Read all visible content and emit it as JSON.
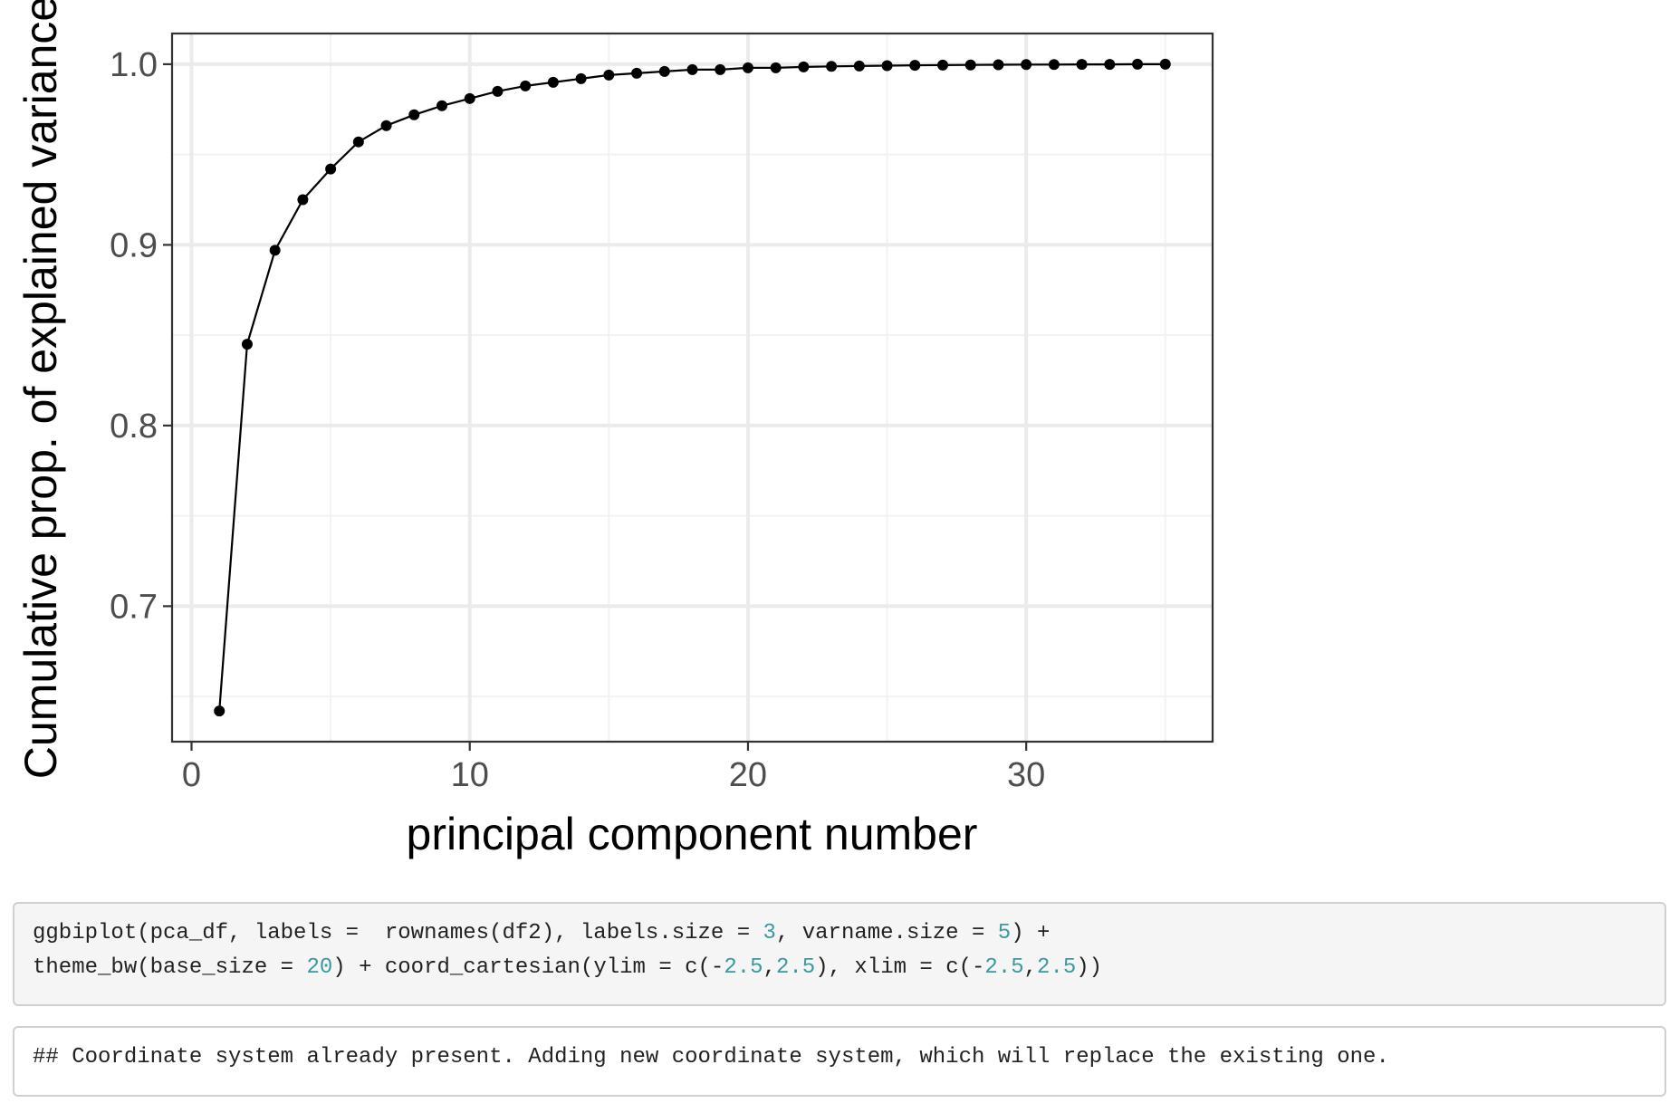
{
  "chart_data": {
    "type": "line",
    "xlabel": "principal component number",
    "ylabel": "Cumulative prop. of explained variance",
    "xlim": [
      -0.7,
      36.7
    ],
    "ylim": [
      0.625,
      1.017
    ],
    "x_ticks": [
      0,
      10,
      20,
      30
    ],
    "x_tick_labels": [
      "0",
      "10",
      "20",
      "30"
    ],
    "y_ticks": [
      0.7,
      0.8,
      0.9,
      1.0
    ],
    "y_tick_labels": [
      "0.7",
      "0.8",
      "0.9",
      "1.0"
    ],
    "x_minor_ticks": [
      5,
      15,
      25,
      35
    ],
    "y_minor_ticks": [
      0.65,
      0.75,
      0.85,
      0.95
    ],
    "grid": true,
    "legend": "none",
    "series": [
      {
        "x": [
          1,
          2,
          3,
          4,
          5,
          6,
          7,
          8,
          9,
          10,
          11,
          12,
          13,
          14,
          15,
          16,
          17,
          18,
          19,
          20,
          21,
          22,
          23,
          24,
          25,
          26,
          27,
          28,
          29,
          30,
          31,
          32,
          33,
          34,
          35
        ],
        "values": [
          0.642,
          0.845,
          0.897,
          0.925,
          0.942,
          0.957,
          0.966,
          0.972,
          0.977,
          0.981,
          0.985,
          0.988,
          0.99,
          0.992,
          0.994,
          0.995,
          0.996,
          0.997,
          0.997,
          0.998,
          0.998,
          0.9985,
          0.9988,
          0.999,
          0.9992,
          0.9994,
          0.9995,
          0.9996,
          0.9997,
          0.9998,
          0.9998,
          0.9999,
          0.9999,
          1.0,
          1.0
        ]
      }
    ],
    "colors": {
      "line": "#000000",
      "panel_border": "#333333",
      "grid_major": "#ebebeb",
      "grid_minor": "#f2f2f2"
    }
  },
  "code": {
    "input_lines": [
      [
        {
          "t": "ggbiplot(pca_df, labels =  rownames(df2), labels.size = "
        },
        {
          "t": "3",
          "num": true
        },
        {
          "t": ", varname.size = "
        },
        {
          "t": "5",
          "num": true
        },
        {
          "t": ") +"
        }
      ],
      [
        {
          "t": "theme_bw(base_size = "
        },
        {
          "t": "20",
          "num": true
        },
        {
          "t": ") + coord_cartesian(ylim = c(-"
        },
        {
          "t": "2.5",
          "num": true
        },
        {
          "t": ","
        },
        {
          "t": "2.5",
          "num": true
        },
        {
          "t": "), xlim = c(-"
        },
        {
          "t": "2.5",
          "num": true
        },
        {
          "t": ","
        },
        {
          "t": "2.5",
          "num": true
        },
        {
          "t": "))"
        }
      ]
    ],
    "output_text": "## Coordinate system already present. Adding new coordinate system, which will replace the existing one."
  }
}
